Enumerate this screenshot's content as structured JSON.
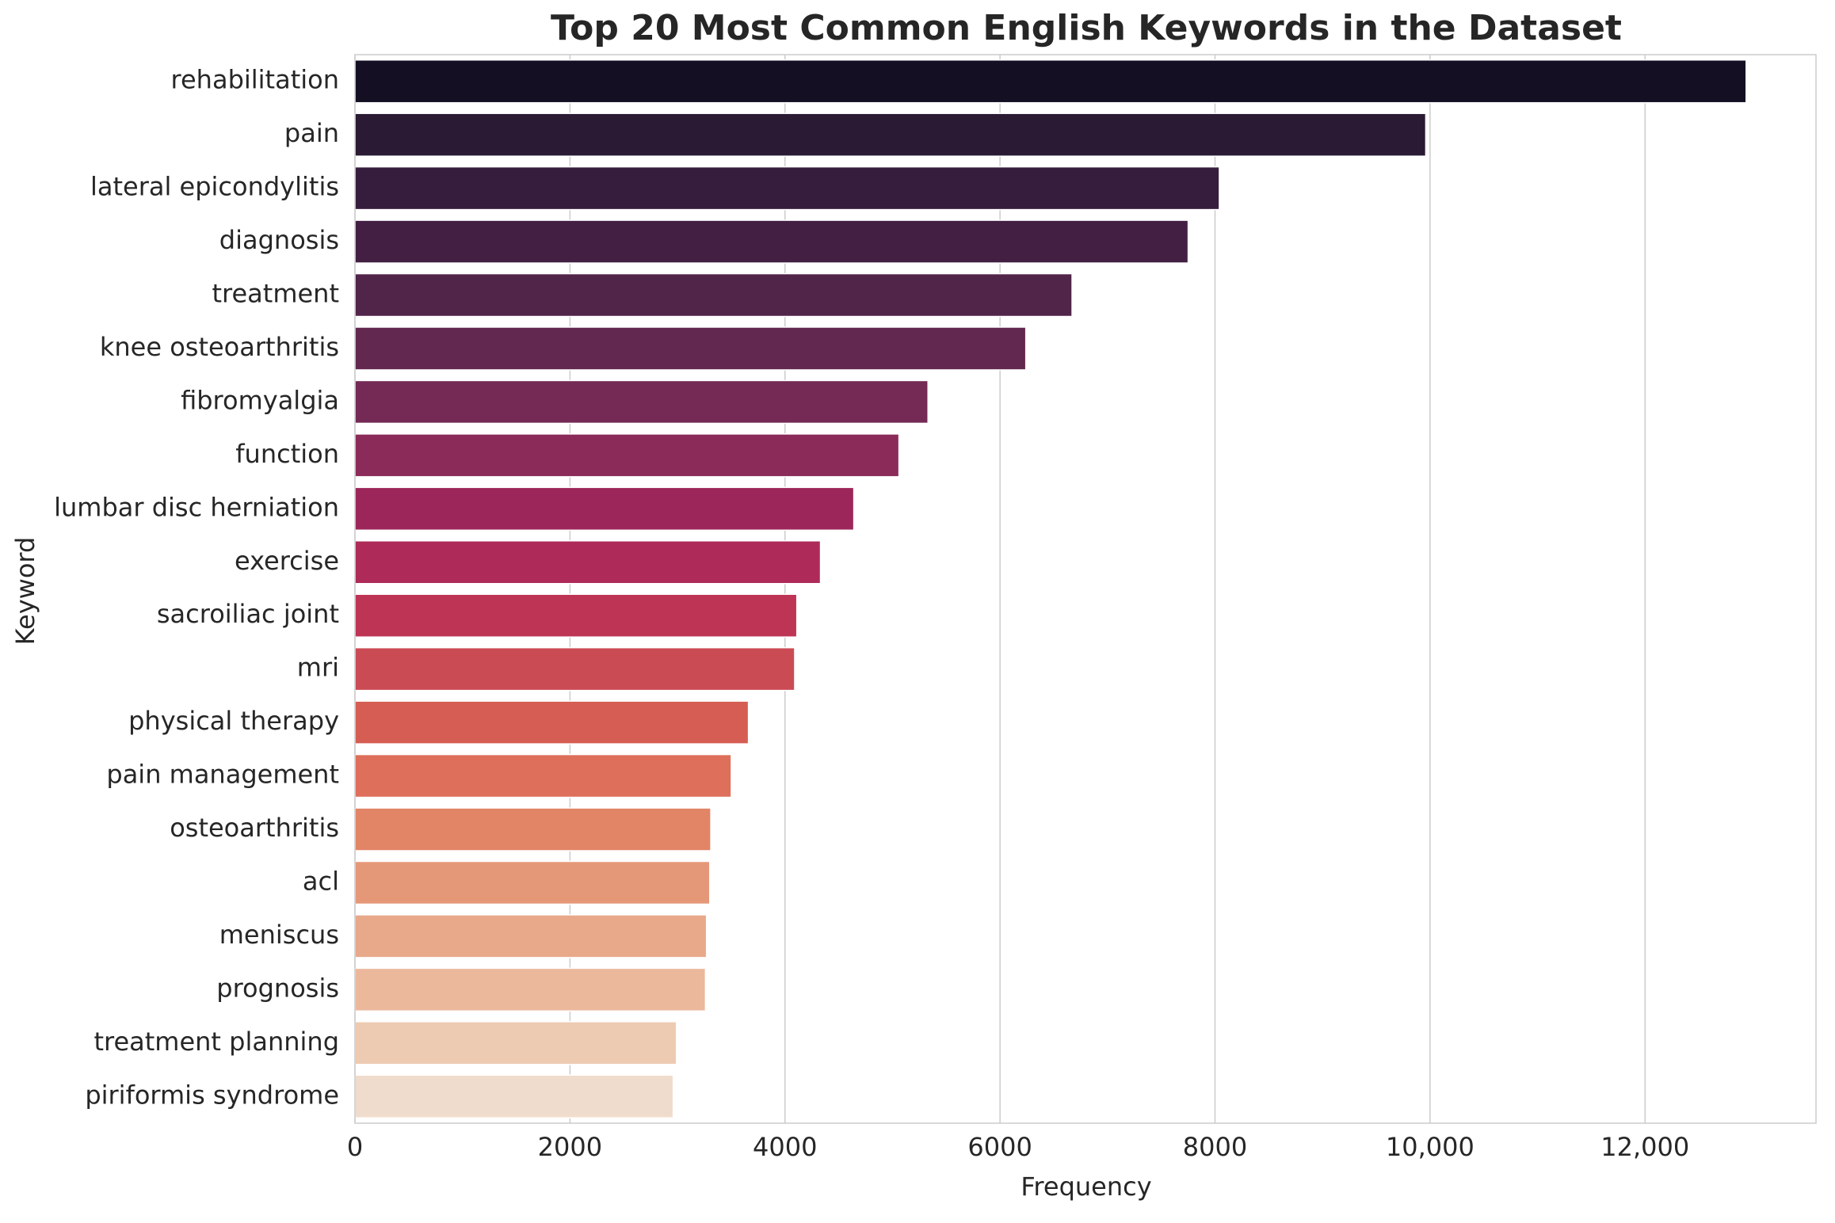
{
  "chart_data": {
    "type": "barh",
    "title": "Top 20 Most Common English Keywords in the Dataset",
    "xlabel": "Frequency",
    "ylabel": "Keyword",
    "categories": [
      "rehabilitation",
      "pain",
      "lateral epicondylitis",
      "diagnosis",
      "treatment",
      "knee osteoarthritis",
      "fibromyalgia",
      "function",
      "lumbar disc herniation",
      "exercise",
      "sacroiliac joint",
      "mri",
      "physical therapy",
      "pain management",
      "osteoarthritis",
      "acl",
      "meniscus",
      "prognosis",
      "treatment planning",
      "piriformis syndrome"
    ],
    "values": [
      12940,
      9960,
      8040,
      7750,
      6670,
      6240,
      5330,
      5060,
      4640,
      4330,
      4110,
      4090,
      3660,
      3500,
      3310,
      3300,
      3270,
      3260,
      2990,
      2960
    ],
    "colors": [
      "#140f22",
      "#2a1a33",
      "#361d3d",
      "#432043",
      "#51244a",
      "#63284f",
      "#742a55",
      "#8b2b59",
      "#9c2659",
      "#ae2a58",
      "#be3455",
      "#cb4b55",
      "#d65d53",
      "#de6f5a",
      "#e28466",
      "#e59878",
      "#e8a98a",
      "#ebb89c",
      "#edcab2",
      "#f0dccc"
    ],
    "xlim": [
      0,
      13590
    ],
    "xticks": [
      0,
      2000,
      4000,
      6000,
      8000,
      {
        "value": 10000,
        "label": "10,000"
      },
      {
        "value": 12000,
        "label": "12,000"
      }
    ],
    "grid": true
  }
}
